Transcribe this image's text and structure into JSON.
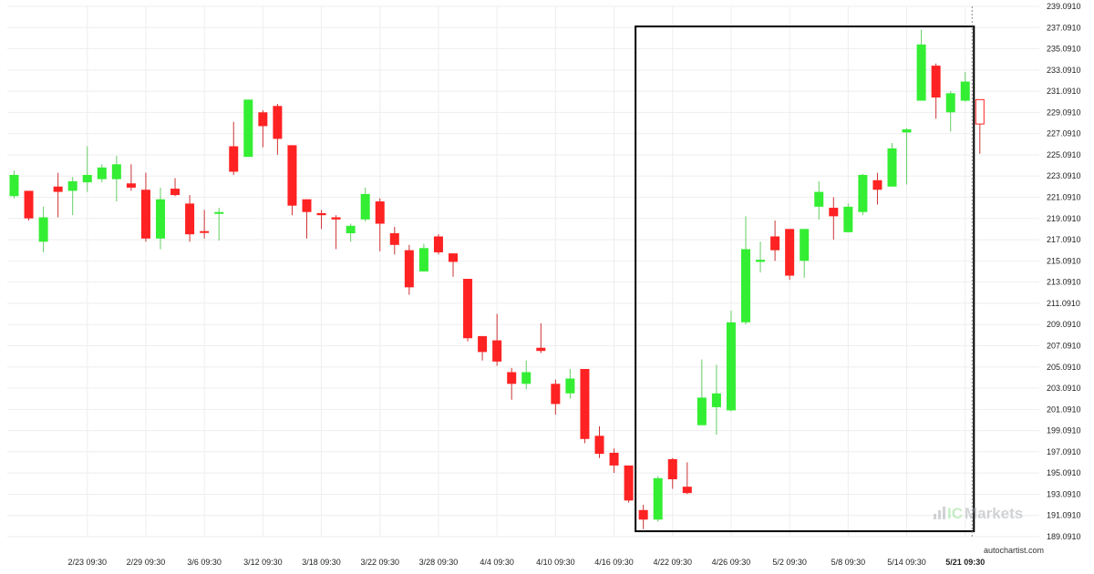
{
  "chart_data": {
    "type": "candlestick",
    "ylim": [
      189.091,
      239.091
    ],
    "y_ticks": [
      "189.0910",
      "191.0910",
      "193.0910",
      "195.0910",
      "197.0910",
      "199.0910",
      "201.0910",
      "203.0910",
      "205.0910",
      "207.0910",
      "209.0910",
      "211.0910",
      "213.0910",
      "215.0910",
      "217.0910",
      "219.0910",
      "221.0910",
      "223.0910",
      "225.0910",
      "227.0910",
      "229.0910",
      "231.0910",
      "233.0910",
      "235.0910",
      "237.0910",
      "239.0910"
    ],
    "x_ticks": [
      {
        "index": 5,
        "label": "2/23 09:30"
      },
      {
        "index": 9,
        "label": "2/29 09:30"
      },
      {
        "index": 13,
        "label": "3/6 09:30"
      },
      {
        "index": 17,
        "label": "3/12 09:30"
      },
      {
        "index": 21,
        "label": "3/18 09:30"
      },
      {
        "index": 25,
        "label": "3/22 09:30"
      },
      {
        "index": 29,
        "label": "3/28 09:30"
      },
      {
        "index": 33,
        "label": "4/4 09:30"
      },
      {
        "index": 37,
        "label": "4/10 09:30"
      },
      {
        "index": 41,
        "label": "4/16 09:30"
      },
      {
        "index": 45,
        "label": "4/22 09:30"
      },
      {
        "index": 49,
        "label": "4/26 09:30"
      },
      {
        "index": 53,
        "label": "5/2 09:30"
      },
      {
        "index": 57,
        "label": "5/8 09:30"
      },
      {
        "index": 61,
        "label": "5/14 09:30"
      },
      {
        "index": 65,
        "label": "5/21 09:30",
        "bold": true
      }
    ],
    "candles": [
      {
        "o": 221.2,
        "h": 223.6,
        "l": 221.0,
        "c": 223.2
      },
      {
        "o": 221.7,
        "h": 221.7,
        "l": 218.9,
        "c": 219.1
      },
      {
        "o": 216.9,
        "h": 220.2,
        "l": 215.9,
        "c": 219.2
      },
      {
        "o": 222.1,
        "h": 223.4,
        "l": 219.2,
        "c": 221.6
      },
      {
        "o": 221.7,
        "h": 223.0,
        "l": 219.4,
        "c": 222.6
      },
      {
        "o": 222.5,
        "h": 225.9,
        "l": 221.6,
        "c": 223.2
      },
      {
        "o": 222.8,
        "h": 224.2,
        "l": 222.5,
        "c": 223.9
      },
      {
        "o": 222.8,
        "h": 225.0,
        "l": 220.7,
        "c": 224.2
      },
      {
        "o": 222.4,
        "h": 224.2,
        "l": 221.7,
        "c": 222.0
      },
      {
        "o": 221.8,
        "h": 223.4,
        "l": 216.9,
        "c": 217.2
      },
      {
        "o": 217.2,
        "h": 222.0,
        "l": 216.2,
        "c": 220.9
      },
      {
        "o": 221.9,
        "h": 222.9,
        "l": 221.2,
        "c": 221.3
      },
      {
        "o": 220.5,
        "h": 221.3,
        "l": 216.9,
        "c": 217.6
      },
      {
        "o": 217.9,
        "h": 219.9,
        "l": 217.2,
        "c": 217.8
      },
      {
        "o": 219.6,
        "h": 220.1,
        "l": 217.0,
        "c": 219.7
      },
      {
        "o": 225.9,
        "h": 228.2,
        "l": 223.2,
        "c": 223.5
      },
      {
        "o": 224.9,
        "h": 230.3,
        "l": 224.9,
        "c": 230.3
      },
      {
        "o": 229.1,
        "h": 229.3,
        "l": 225.8,
        "c": 227.8
      },
      {
        "o": 229.7,
        "h": 229.9,
        "l": 225.1,
        "c": 226.6
      },
      {
        "o": 226.0,
        "h": 226.0,
        "l": 219.4,
        "c": 220.3
      },
      {
        "o": 220.9,
        "h": 220.9,
        "l": 217.2,
        "c": 219.7
      },
      {
        "o": 219.6,
        "h": 219.9,
        "l": 218.1,
        "c": 219.4
      },
      {
        "o": 219.2,
        "h": 219.4,
        "l": 216.2,
        "c": 219.0
      },
      {
        "o": 217.7,
        "h": 218.6,
        "l": 216.9,
        "c": 218.4
      },
      {
        "o": 219.0,
        "h": 222.0,
        "l": 218.8,
        "c": 221.4
      },
      {
        "o": 220.7,
        "h": 221.0,
        "l": 216.0,
        "c": 218.6
      },
      {
        "o": 217.7,
        "h": 218.3,
        "l": 215.7,
        "c": 216.6
      },
      {
        "o": 216.1,
        "h": 216.6,
        "l": 211.9,
        "c": 212.6
      },
      {
        "o": 214.1,
        "h": 216.7,
        "l": 214.1,
        "c": 216.3
      },
      {
        "o": 217.4,
        "h": 217.6,
        "l": 215.7,
        "c": 215.9
      },
      {
        "o": 215.8,
        "h": 215.8,
        "l": 213.6,
        "c": 215.0
      },
      {
        "o": 213.4,
        "h": 213.4,
        "l": 207.5,
        "c": 207.8
      },
      {
        "o": 208.0,
        "h": 208.0,
        "l": 205.7,
        "c": 206.5
      },
      {
        "o": 207.6,
        "h": 210.1,
        "l": 205.2,
        "c": 205.6
      },
      {
        "o": 204.6,
        "h": 205.0,
        "l": 202.0,
        "c": 203.5
      },
      {
        "o": 203.5,
        "h": 205.7,
        "l": 203.0,
        "c": 204.6
      },
      {
        "o": 206.9,
        "h": 209.2,
        "l": 206.4,
        "c": 206.6
      },
      {
        "o": 203.5,
        "h": 203.9,
        "l": 200.6,
        "c": 201.6
      },
      {
        "o": 202.6,
        "h": 204.9,
        "l": 202.1,
        "c": 204.0
      },
      {
        "o": 204.9,
        "h": 204.9,
        "l": 197.9,
        "c": 198.3
      },
      {
        "o": 198.6,
        "h": 199.5,
        "l": 196.5,
        "c": 196.9
      },
      {
        "o": 197.0,
        "h": 197.4,
        "l": 195.1,
        "c": 195.8
      },
      {
        "o": 195.8,
        "h": 195.8,
        "l": 192.3,
        "c": 192.5
      },
      {
        "o": 191.6,
        "h": 192.1,
        "l": 189.8,
        "c": 190.7
      },
      {
        "o": 190.7,
        "h": 194.8,
        "l": 190.5,
        "c": 194.6
      },
      {
        "o": 196.4,
        "h": 196.5,
        "l": 193.6,
        "c": 194.5
      },
      {
        "o": 193.8,
        "h": 196.1,
        "l": 193.1,
        "c": 193.2
      },
      {
        "o": 199.6,
        "h": 205.8,
        "l": 199.6,
        "c": 202.2
      },
      {
        "o": 201.3,
        "h": 205.3,
        "l": 198.7,
        "c": 202.6
      },
      {
        "o": 201.0,
        "h": 210.4,
        "l": 200.9,
        "c": 209.3
      },
      {
        "o": 209.3,
        "h": 219.3,
        "l": 209.1,
        "c": 216.2
      },
      {
        "o": 215.0,
        "h": 216.9,
        "l": 214.0,
        "c": 215.2
      },
      {
        "o": 217.4,
        "h": 218.9,
        "l": 215.1,
        "c": 216.1
      },
      {
        "o": 218.1,
        "h": 218.1,
        "l": 213.3,
        "c": 213.7
      },
      {
        "o": 215.1,
        "h": 218.1,
        "l": 213.5,
        "c": 218.1
      },
      {
        "o": 220.2,
        "h": 222.6,
        "l": 219.0,
        "c": 221.6
      },
      {
        "o": 220.1,
        "h": 221.1,
        "l": 217.1,
        "c": 219.3
      },
      {
        "o": 217.8,
        "h": 220.5,
        "l": 217.8,
        "c": 220.2
      },
      {
        "o": 219.7,
        "h": 223.3,
        "l": 219.4,
        "c": 223.2
      },
      {
        "o": 222.7,
        "h": 223.4,
        "l": 220.4,
        "c": 221.8
      },
      {
        "o": 222.1,
        "h": 226.2,
        "l": 222.1,
        "c": 225.7
      },
      {
        "o": 227.2,
        "h": 227.6,
        "l": 222.3,
        "c": 227.5
      },
      {
        "o": 230.2,
        "h": 236.9,
        "l": 230.2,
        "c": 235.5
      },
      {
        "o": 233.5,
        "h": 233.7,
        "l": 228.5,
        "c": 230.5
      },
      {
        "o": 229.1,
        "h": 231.1,
        "l": 227.3,
        "c": 230.9
      },
      {
        "o": 230.2,
        "h": 232.9,
        "l": 230.1,
        "c": 232.0
      },
      {
        "o": 230.3,
        "h": 230.3,
        "l": 225.2,
        "c": 228.0,
        "outline": true
      }
    ],
    "highlight_box": {
      "from_index": 43,
      "to_index": 66,
      "y_low": 189.6,
      "y_high": 237.2
    },
    "current_marker_index": 66,
    "colors": {
      "up": "#33ee33",
      "down": "#ff2222",
      "up_wick": "#66cc66",
      "down_wick": "#cc3333",
      "grid": "#eeeeee",
      "box": "#000000",
      "marker": "#888888"
    }
  },
  "watermark": "autochartist.com",
  "brand_logo": {
    "text_ic": "IC",
    "text_markets": "Markets"
  }
}
